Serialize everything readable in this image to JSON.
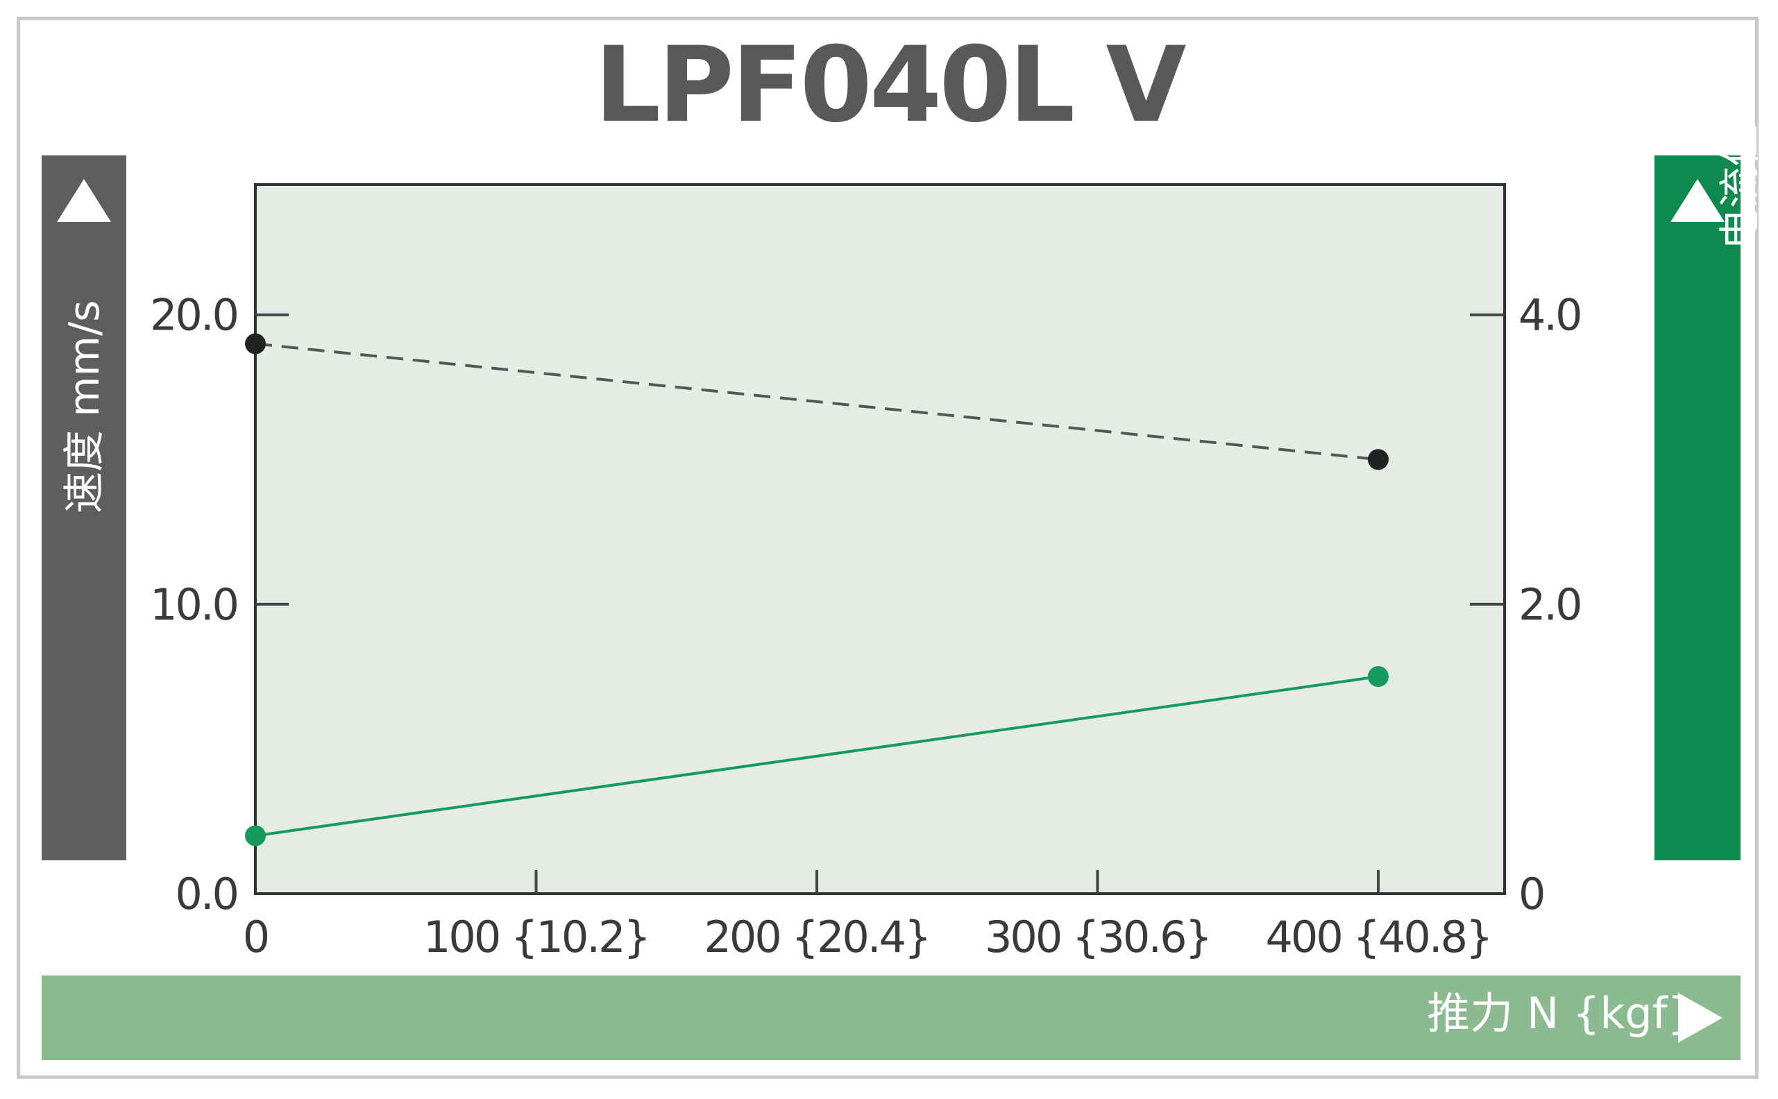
{
  "chart_data": {
    "type": "line",
    "title": "LPF040L V",
    "xlabel": "推力 N {kgf}",
    "ylabel_left": "速度 mm/s",
    "ylabel_right": "电流值 A",
    "x_ticks": [
      {
        "value": 0,
        "label": "0"
      },
      {
        "value": 100,
        "label": "100 {10.2}"
      },
      {
        "value": 200,
        "label": "200 {20.4}"
      },
      {
        "value": 300,
        "label": "300 {30.6}"
      },
      {
        "value": 400,
        "label": "400 {40.8}"
      }
    ],
    "y_left_ticks": [
      {
        "value": 0,
        "label": "0.0"
      },
      {
        "value": 10,
        "label": "10.0"
      },
      {
        "value": 20,
        "label": "20.0"
      }
    ],
    "y_right_ticks": [
      {
        "value": 0,
        "label": "0"
      },
      {
        "value": 2,
        "label": "2.0"
      },
      {
        "value": 4,
        "label": "4.0"
      }
    ],
    "xlim": [
      0,
      445
    ],
    "ylim_left": [
      0,
      24.5
    ],
    "ylim_right": [
      0,
      4.9
    ],
    "grid": false,
    "series": [
      {
        "axis": "left",
        "style": "dashed",
        "color": "#222222",
        "x": [
          0,
          400
        ],
        "y": [
          19.0,
          15.0
        ]
      },
      {
        "axis": "right",
        "style": "solid",
        "color": "#139a5c",
        "x": [
          0,
          400
        ],
        "y": [
          0.4,
          1.5
        ]
      }
    ]
  },
  "colors": {
    "plot_background": "#e5ebe5",
    "left_banner": "#5e5e5e",
    "right_banner": "#0f8a4f",
    "bottom_banner": "#8bb990"
  },
  "icons": {
    "left_banner_arrow": "triangle-up-icon",
    "right_banner_arrow": "triangle-up-icon",
    "bottom_banner_arrow": "triangle-right-icon"
  }
}
